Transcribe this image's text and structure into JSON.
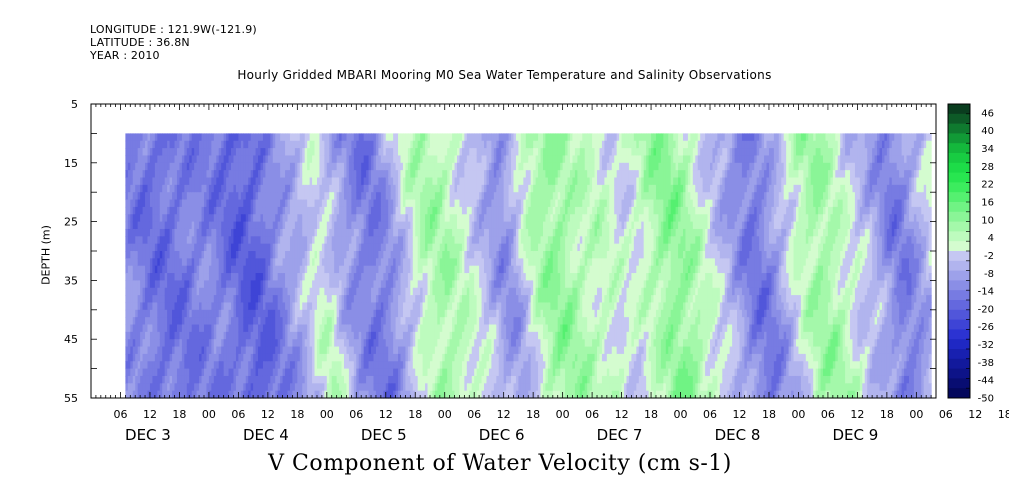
{
  "header": {
    "longitude": "LONGITUDE : 121.9W(-121.9)",
    "latitude": "LATITUDE : 36.8N",
    "year": "YEAR : 2010"
  },
  "chart_data": {
    "type": "heatmap",
    "title": "Hourly Gridded MBARI Mooring M0 Sea Water Temperature and Salinity Observations",
    "xlabel": "V Component of Water Velocity (cm s-1)",
    "ylabel": "DEPTH (m)",
    "x_axis": {
      "hour_ticks": [
        "06",
        "12",
        "18",
        "00",
        "06",
        "12",
        "18",
        "00",
        "06",
        "12",
        "18",
        "00",
        "06",
        "12",
        "18",
        "00",
        "06",
        "12",
        "18",
        "00",
        "06",
        "12",
        "18",
        "00",
        "06",
        "12",
        "18",
        "00",
        "06",
        "12",
        "18",
        "00"
      ],
      "day_labels": [
        "DEC 3",
        "DEC 4",
        "DEC 5",
        "DEC 6",
        "DEC 7",
        "DEC 8",
        "DEC 9"
      ],
      "range_hours": [
        0,
        172
      ]
    },
    "y_axis": {
      "ticks": [
        5,
        15,
        25,
        35,
        45,
        55
      ],
      "ylim": [
        5,
        55
      ],
      "inverted": true
    },
    "data_extent": {
      "depth": [
        10,
        55
      ],
      "hours": [
        7,
        171
      ]
    },
    "colorbar": {
      "labels": [
        "46",
        "40",
        "34",
        "28",
        "22",
        "16",
        "10",
        "4",
        "-2",
        "-8",
        "-14",
        "-20",
        "-26",
        "-32",
        "-38",
        "-44",
        "-50"
      ],
      "levels": [
        49,
        46,
        43,
        40,
        37,
        34,
        31,
        28,
        25,
        22,
        19,
        16,
        13,
        10,
        7,
        4,
        1,
        -2,
        -5,
        -8,
        -11,
        -14,
        -17,
        -20,
        -23,
        -26,
        -29,
        -32,
        -35,
        -38,
        -41,
        -44,
        -47,
        -50
      ],
      "colors": [
        "#0a3d1f",
        "#0d5a27",
        "#0f7a2f",
        "#119a36",
        "#14b83c",
        "#18cc42",
        "#1ddc48",
        "#28e650",
        "#3cec5e",
        "#55f070",
        "#70f384",
        "#8af597",
        "#a4f8aa",
        "#bdfbbe",
        "#d4fccf",
        "#c5c7f2",
        "#b1b4ee",
        "#9da1ea",
        "#8a8ee6",
        "#777be2",
        "#6468de",
        "#5156da",
        "#3e44d6",
        "#2c33d2",
        "#1f28c4",
        "#1820b0",
        "#12199c",
        "#0d1388",
        "#080d72",
        "#04085c"
      ]
    },
    "field_description": {
      "green_dominant_days": [
        "DEC 5 late",
        "DEC 6",
        "DEC 7",
        "DEC 8 late",
        "DEC 9 early"
      ],
      "blue_dominant_days": [
        "DEC 3",
        "DEC 4",
        "DEC 5 early",
        "DEC 8 mid",
        "DEC 9 late"
      ],
      "value_range": [
        -30,
        30
      ]
    }
  }
}
